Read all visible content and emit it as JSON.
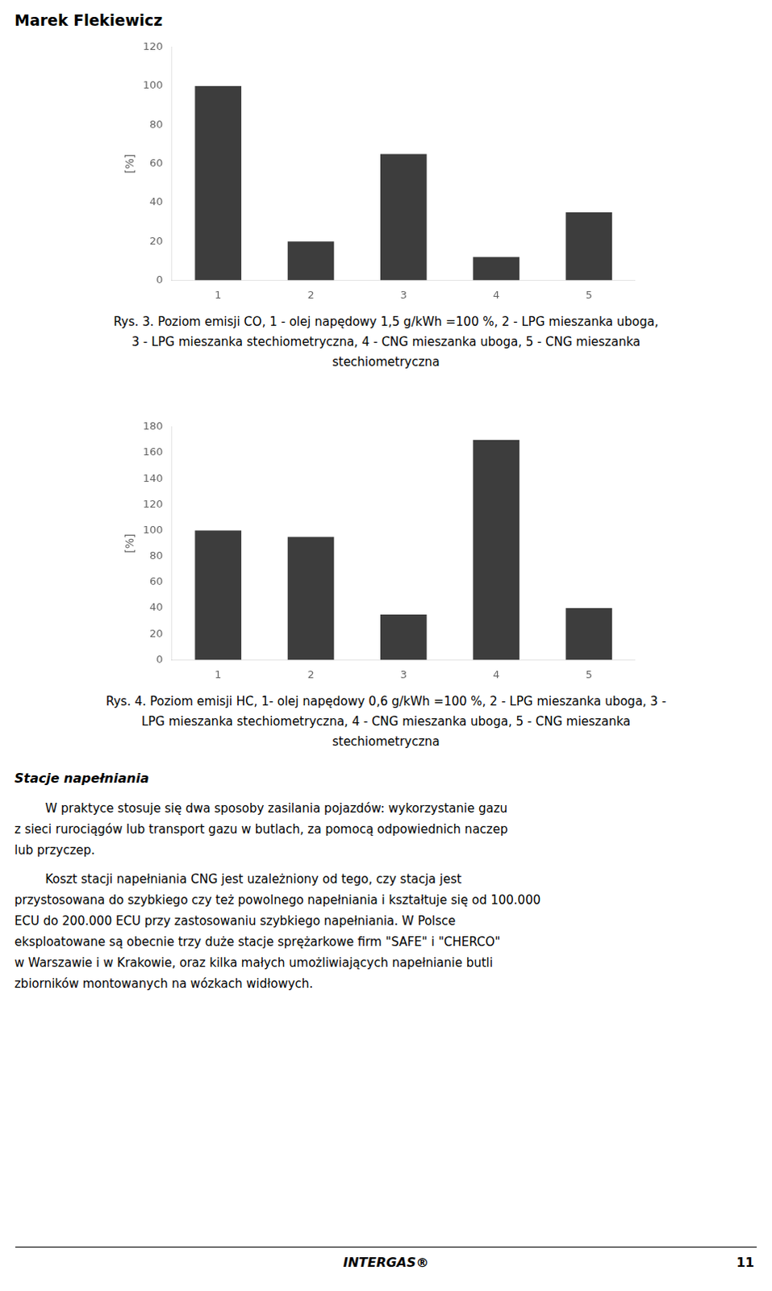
{
  "header": "Marek Flekiewicz",
  "chart_data": [
    {
      "type": "bar",
      "categories": [
        "1",
        "2",
        "3",
        "4",
        "5"
      ],
      "values": [
        100,
        20,
        65,
        12,
        35
      ],
      "color": "#3d3d3d",
      "ylabel": "[%]",
      "ylim": [
        0,
        120
      ],
      "yticks": [
        0,
        20,
        40,
        60,
        80,
        100,
        120
      ],
      "grid": false,
      "caption": [
        "Rys. 3. Poziom emisji CO, 1 - olej napędowy 1,5 g/kWh =100 %, 2 - LPG mieszanka uboga,",
        "3 - LPG mieszanka stechiometryczna, 4 - CNG mieszanka uboga, 5 - CNG mieszanka",
        "stechiometryczna"
      ]
    },
    {
      "type": "bar",
      "categories": [
        "1",
        "2",
        "3",
        "4",
        "5"
      ],
      "values": [
        100,
        95,
        35,
        170,
        40
      ],
      "color": "#3d3d3d",
      "ylabel": "[%]",
      "ylim": [
        0,
        180
      ],
      "yticks": [
        0,
        20,
        40,
        60,
        80,
        100,
        120,
        140,
        160,
        180
      ],
      "grid": false,
      "caption": [
        "Rys. 4. Poziom emisji HC, 1- olej napędowy 0,6 g/kWh =100 %, 2 - LPG mieszanka uboga, 3 -",
        "LPG mieszanka stechiometryczna, 4 - CNG mieszanka uboga, 5 - CNG mieszanka",
        "stechiometryczna"
      ]
    }
  ],
  "section_title": "Stacje napełniania",
  "paragraphs": [
    [
      "        W praktyce stosuje się dwa sposoby zasilania pojazdów: wykorzystanie gazu",
      "z sieci rurociągów lub transport gazu w butlach, za pomocą odpowiednich naczep",
      "lub przyczep."
    ],
    [
      "        Koszt stacji napełniania CNG jest uzależniony od tego, czy stacja jest",
      "przystosowana do szybkiego czy też powolnego napełniania i kształtuje się od 100.000",
      "ECU do 200.000 ECU przy zastosowaniu szybkiego napełniania. W Polsce",
      "eksploatowane są obecnie trzy duże stacje sprężarkowe firm \"SAFE\" i \"CHERCO\"",
      "w Warszawie i w Krakowie, oraz kilka małych umożliwiających napełnianie butli",
      "zbiorników montowanych na wózkach widłowych."
    ]
  ],
  "footer": "INTERGAS®",
  "page_number": "11"
}
